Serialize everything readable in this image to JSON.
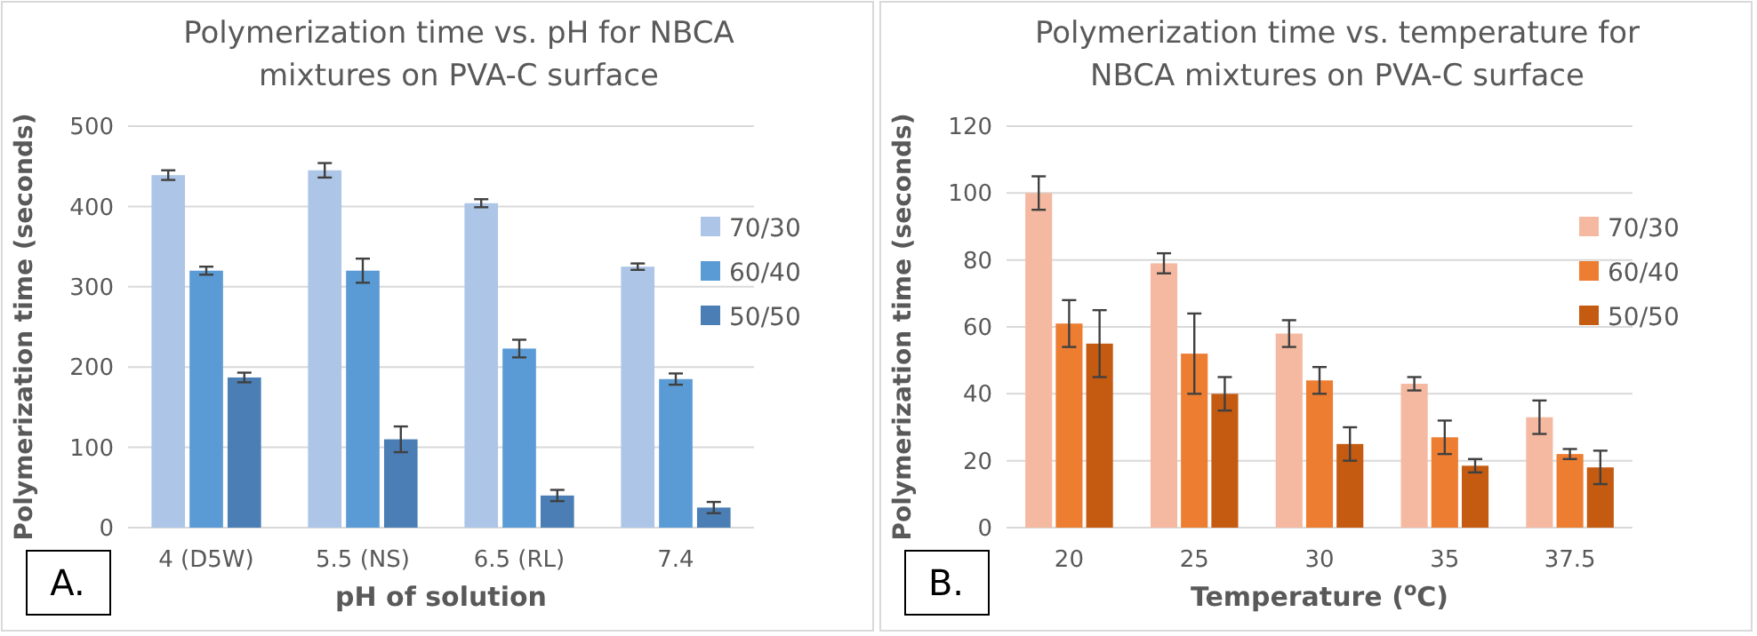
{
  "chart_data": [
    {
      "type": "bar",
      "title": "Polymerization time vs. pH for NBCA mixtures on PVA-C surface",
      "xlabel": "pH of solution",
      "ylabel": "Polymerization time (seconds)",
      "categories": [
        "4 (D5W)",
        "5.5 (NS)",
        "6.5 (RL)",
        "7.4"
      ],
      "series": [
        {
          "name": "70/30",
          "color": "#adc5e6",
          "values": [
            439,
            445,
            404,
            325
          ],
          "errors": [
            6,
            9,
            5,
            4
          ]
        },
        {
          "name": "60/40",
          "color": "#5b9bd5",
          "values": [
            320,
            320,
            223,
            185
          ],
          "errors": [
            5,
            15,
            11,
            7
          ]
        },
        {
          "name": "50/50",
          "color": "#4a7eb4",
          "values": [
            187,
            110,
            40,
            25
          ],
          "errors": [
            6,
            16,
            7,
            7
          ]
        }
      ],
      "ylim": [
        0,
        500
      ],
      "yticks": [
        0,
        100,
        200,
        300,
        400,
        500
      ],
      "grid": "y",
      "legend": "right",
      "annotations": [
        "A."
      ]
    },
    {
      "type": "bar",
      "title": "Polymerization time vs. temperature for NBCA mixtures on PVA-C surface",
      "xlabel": "Temperature ($^{o}$C)",
      "ylabel": "Polymerization time (seconds)",
      "categories": [
        "20",
        "25",
        "30",
        "35",
        "37.5"
      ],
      "series": [
        {
          "name": "70/30",
          "color": "#f4b9a0",
          "values": [
            100,
            79,
            58,
            43,
            33
          ],
          "errors": [
            5,
            3,
            4,
            2,
            5
          ]
        },
        {
          "name": "60/40",
          "color": "#ed7d31",
          "values": [
            61,
            52,
            44,
            27,
            22
          ],
          "errors": [
            7,
            12,
            4,
            5,
            1.5
          ]
        },
        {
          "name": "50/50",
          "color": "#c55a11",
          "values": [
            55,
            40,
            25,
            18.5,
            18
          ],
          "errors": [
            10,
            5,
            5,
            2,
            5
          ]
        }
      ],
      "ylim": [
        0,
        120
      ],
      "yticks": [
        0,
        20,
        40,
        60,
        80,
        100,
        120
      ],
      "grid": "y",
      "legend": "right",
      "annotations": [
        "B."
      ]
    }
  ]
}
